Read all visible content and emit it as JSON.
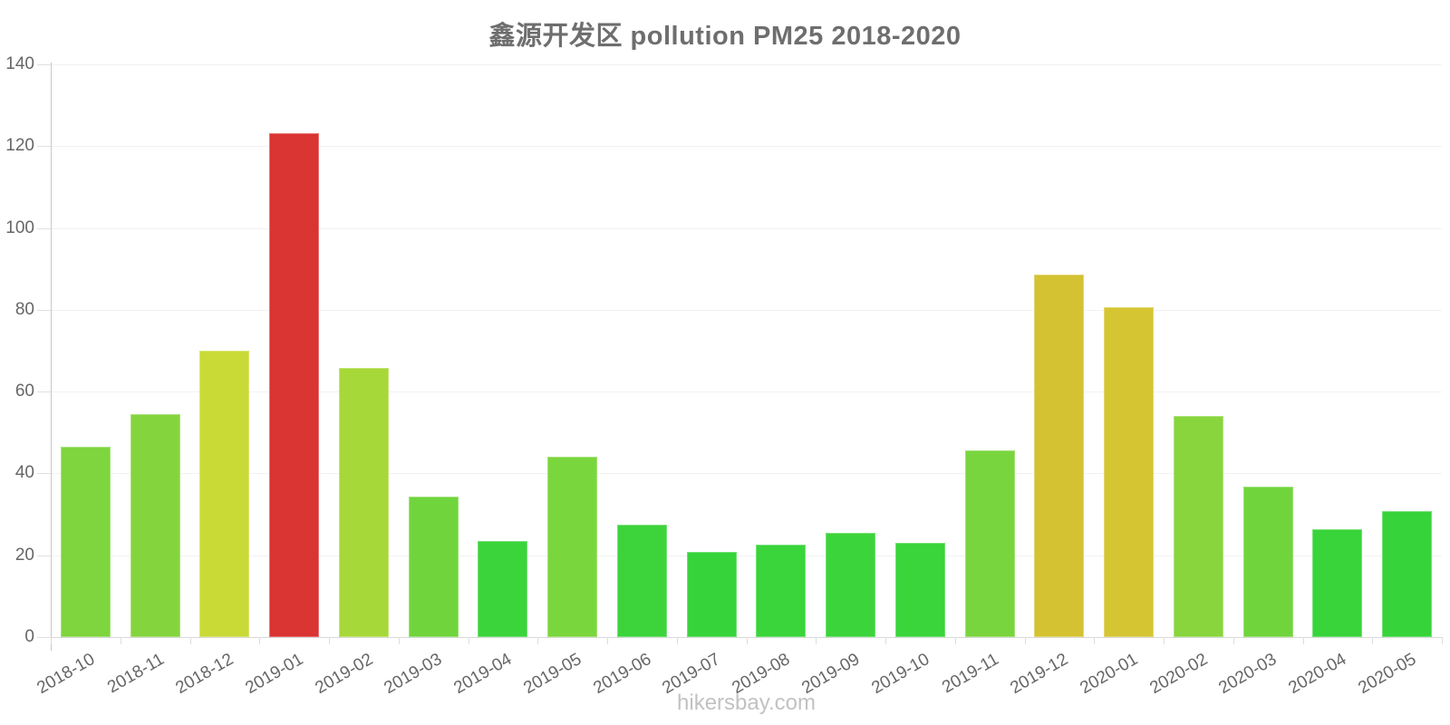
{
  "title": "鑫源开发区 pollution PM25 2018-2020",
  "footer": {
    "brand": "hikersbay.com"
  },
  "colors": {
    "background": "#FFFFFF",
    "title_text": "#6E6E6E",
    "axis_text": "#666666",
    "grid_line": "#F2F2F2",
    "axis_line": "#C8C8C8",
    "tick_line": "#E0E0E0",
    "baseline": "#D8D8D8",
    "footer_text": "#C2C2C2",
    "bar_red": "#DA3433",
    "bar_yellow": "#D5C433",
    "bar_yellow_green": "#C9DA37",
    "bar_light_green": "#7ED53D",
    "bar_green": "#38D43A"
  },
  "chart_data": {
    "type": "bar",
    "title": "鑫源开发区 pollution PM25 2018-2020",
    "xlabel": "",
    "ylabel": "",
    "ylim": [
      0,
      140
    ],
    "yticks": [
      0,
      20,
      40,
      60,
      80,
      100,
      120,
      140
    ],
    "grid": "horizontal-faint",
    "legend": "none",
    "categories": [
      "2018-10",
      "2018-11",
      "2018-12",
      "2019-01",
      "2019-02",
      "2019-03",
      "2019-04",
      "2019-05",
      "2019-06",
      "2019-07",
      "2019-08",
      "2019-09",
      "2019-10",
      "2019-11",
      "2019-12",
      "2020-01",
      "2020-02",
      "2020-03",
      "2020-04",
      "2020-05"
    ],
    "values": [
      46.6,
      54.5,
      69.9,
      123.2,
      65.9,
      34.4,
      23.4,
      44.0,
      27.4,
      20.9,
      22.7,
      25.4,
      23.0,
      45.7,
      88.5,
      80.6,
      54.0,
      36.8,
      26.3,
      30.9
    ],
    "bar_colors": [
      "#7ED53D",
      "#84D53D",
      "#C9DA37",
      "#DA3433",
      "#A7D839",
      "#70D53D",
      "#3BD43B",
      "#7AD63D",
      "#3DD43B",
      "#36D43A",
      "#3AD43B",
      "#3CD43B",
      "#3AD43B",
      "#79D53D",
      "#D4C233",
      "#D6C533",
      "#89D53E",
      "#70D53D",
      "#38D43A",
      "#36D43A"
    ]
  }
}
